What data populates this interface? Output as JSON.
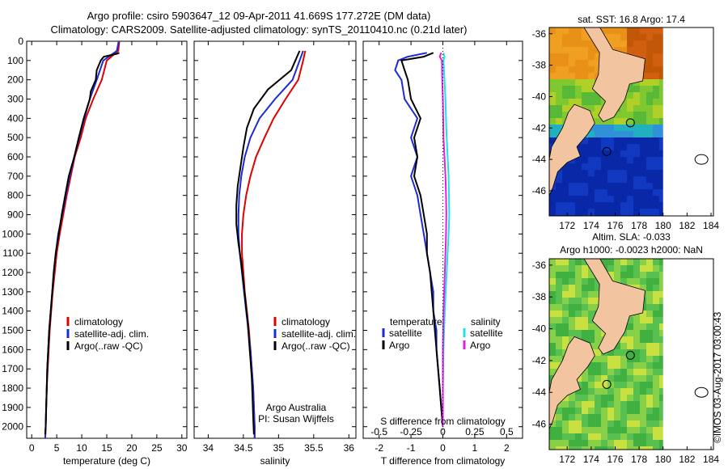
{
  "header": {
    "line1": "Argo profile: csiro 5903647_12 09-Apr-2011 41.669S 177.272E (DM data)",
    "line2": "Climatology: CARS2009. Satellite-adjusted climatology: synTS_20110410.nc (0.21d later)"
  },
  "colors": {
    "climatology": "#e00000",
    "satellite": "#1c2bd6",
    "argo": "#000000",
    "sat_salinity": "#22e0e8",
    "argo_salinity": "#e020e0",
    "land": "#f2c4a0"
  },
  "chart_data": [
    {
      "type": "line",
      "panel": "temperature",
      "xlabel": "temperature (deg C)",
      "xlim": [
        -1,
        31
      ],
      "xticks": [
        0,
        5,
        10,
        15,
        20,
        25,
        30
      ],
      "ylim": [
        2060,
        0
      ],
      "yticks": [
        0,
        100,
        200,
        300,
        400,
        500,
        600,
        700,
        800,
        900,
        1000,
        1100,
        1200,
        1300,
        1400,
        1500,
        1600,
        1700,
        1800,
        1900,
        2000
      ],
      "legend": [
        "climatology",
        "satellite-adj. clim.",
        "Argo(..raw -QC)"
      ],
      "series": [
        {
          "name": "climatology",
          "color": "#e00000",
          "points": [
            [
              17.5,
              0
            ],
            [
              17.3,
              50
            ],
            [
              15,
              100
            ],
            [
              14,
              200
            ],
            [
              12.3,
              300
            ],
            [
              10.8,
              400
            ],
            [
              9.8,
              500
            ],
            [
              8.6,
              600
            ],
            [
              7.8,
              700
            ],
            [
              7,
              800
            ],
            [
              6.3,
              900
            ],
            [
              5.6,
              1000
            ],
            [
              5,
              1100
            ],
            [
              4.6,
              1200
            ],
            [
              4.2,
              1300
            ],
            [
              3.9,
              1400
            ],
            [
              3.6,
              1500
            ],
            [
              3.4,
              1600
            ],
            [
              3.2,
              1700
            ],
            [
              3,
              1800
            ],
            [
              2.9,
              1900
            ],
            [
              2.8,
              2000
            ],
            [
              2.7,
              2060
            ]
          ]
        },
        {
          "name": "satellite-adj. clim.",
          "color": "#1c2bd6",
          "points": [
            [
              17.4,
              0
            ],
            [
              17,
              50
            ],
            [
              14.3,
              100
            ],
            [
              13,
              200
            ],
            [
              11.6,
              300
            ],
            [
              10.5,
              400
            ],
            [
              9.5,
              500
            ],
            [
              8.5,
              600
            ],
            [
              7.6,
              700
            ],
            [
              6.8,
              800
            ],
            [
              6.1,
              900
            ],
            [
              5.3,
              1000
            ],
            [
              4.8,
              1100
            ],
            [
              4.4,
              1200
            ],
            [
              4.1,
              1300
            ],
            [
              3.8,
              1400
            ],
            [
              3.5,
              1500
            ],
            [
              3.3,
              1600
            ],
            [
              3.1,
              1700
            ],
            [
              3,
              1800
            ],
            [
              2.9,
              1900
            ],
            [
              2.8,
              2000
            ],
            [
              2.7,
              2060
            ]
          ]
        },
        {
          "name": "Argo(..raw -QC)",
          "color": "#000000",
          "points": [
            [
              17.5,
              60
            ],
            [
              17,
              65
            ],
            [
              14.4,
              80
            ],
            [
              13.8,
              100
            ],
            [
              13,
              150
            ],
            [
              12.8,
              200
            ],
            [
              11.8,
              260
            ],
            [
              11.6,
              300
            ],
            [
              10.4,
              400
            ],
            [
              9.4,
              500
            ],
            [
              8.5,
              600
            ],
            [
              7.4,
              700
            ],
            [
              6.7,
              800
            ],
            [
              6,
              900
            ],
            [
              5.4,
              1000
            ],
            [
              4.8,
              1100
            ],
            [
              4.4,
              1200
            ],
            [
              4.1,
              1300
            ],
            [
              3.8,
              1400
            ],
            [
              3.5,
              1500
            ],
            [
              3.3,
              1600
            ],
            [
              3.1,
              1700
            ],
            [
              3,
              1800
            ],
            [
              2.9,
              1900
            ],
            [
              2.8,
              2000
            ],
            [
              2.7,
              2040
            ]
          ]
        }
      ]
    },
    {
      "type": "line",
      "panel": "salinity",
      "xlabel": "salinity",
      "xlim": [
        33.8,
        36.1
      ],
      "xticks": [
        34,
        34.5,
        35,
        35.5,
        36
      ],
      "xtick_labels": [
        "34",
        "34.5",
        "35",
        "35.5",
        "36"
      ],
      "ylim": [
        2060,
        0
      ],
      "legend": [
        "climatology",
        "satellite-adj. clim.",
        "Argo(..raw -QC)"
      ],
      "annotation": [
        "Argo Australia",
        "PI: Susan Wijffels"
      ],
      "series": [
        {
          "name": "climatology",
          "color": "#e00000",
          "points": [
            [
              35.38,
              50
            ],
            [
              35.35,
              100
            ],
            [
              35.28,
              200
            ],
            [
              35.1,
              300
            ],
            [
              34.93,
              400
            ],
            [
              34.8,
              500
            ],
            [
              34.68,
              600
            ],
            [
              34.6,
              700
            ],
            [
              34.54,
              800
            ],
            [
              34.5,
              900
            ],
            [
              34.48,
              1000
            ],
            [
              34.48,
              1100
            ],
            [
              34.5,
              1200
            ],
            [
              34.52,
              1300
            ],
            [
              34.55,
              1400
            ],
            [
              34.58,
              1500
            ],
            [
              34.6,
              1600
            ],
            [
              34.62,
              1700
            ],
            [
              34.64,
              1800
            ],
            [
              34.65,
              1900
            ],
            [
              34.66,
              2000
            ],
            [
              34.66,
              2060
            ]
          ]
        },
        {
          "name": "satellite-adj. clim.",
          "color": "#1c2bd6",
          "points": [
            [
              35.35,
              50
            ],
            [
              35.3,
              100
            ],
            [
              35.2,
              200
            ],
            [
              34.95,
              300
            ],
            [
              34.73,
              400
            ],
            [
              34.6,
              500
            ],
            [
              34.52,
              600
            ],
            [
              34.47,
              700
            ],
            [
              34.44,
              800
            ],
            [
              34.43,
              900
            ],
            [
              34.43,
              1000
            ],
            [
              34.45,
              1100
            ],
            [
              34.48,
              1200
            ],
            [
              34.51,
              1300
            ],
            [
              34.54,
              1400
            ],
            [
              34.57,
              1500
            ],
            [
              34.6,
              1600
            ],
            [
              34.62,
              1700
            ],
            [
              34.64,
              1800
            ],
            [
              34.65,
              1900
            ],
            [
              34.66,
              2000
            ],
            [
              34.66,
              2060
            ]
          ]
        },
        {
          "name": "Argo(..raw -QC)",
          "color": "#000000",
          "points": [
            [
              35.3,
              50
            ],
            [
              35.24,
              100
            ],
            [
              35.18,
              150
            ],
            [
              34.85,
              250
            ],
            [
              34.65,
              350
            ],
            [
              34.55,
              450
            ],
            [
              34.5,
              550
            ],
            [
              34.46,
              650
            ],
            [
              34.42,
              750
            ],
            [
              34.4,
              850
            ],
            [
              34.4,
              950
            ],
            [
              34.43,
              1050
            ],
            [
              34.47,
              1150
            ],
            [
              34.5,
              1250
            ],
            [
              34.53,
              1350
            ],
            [
              34.56,
              1450
            ],
            [
              34.58,
              1550
            ],
            [
              34.6,
              1650
            ],
            [
              34.62,
              1750
            ],
            [
              34.63,
              1850
            ],
            [
              34.64,
              1950
            ],
            [
              34.65,
              2040
            ]
          ]
        }
      ]
    },
    {
      "type": "line",
      "panel": "difference",
      "xlabel": "T difference from climatology",
      "xlim": [
        -2.5,
        2.5
      ],
      "xticks": [
        -2,
        -1,
        0,
        1,
        2
      ],
      "top_label": "S difference from climatology",
      "top_ticks": [
        -0.5,
        -0.25,
        0,
        0.25,
        0.5
      ],
      "top_tick_labels": [
        "-0.5",
        "-0.25",
        "0",
        "0.25",
        "0.5"
      ],
      "ylim": [
        2060,
        0
      ],
      "legend_titles": [
        "temperature",
        "salinity"
      ],
      "legend": [
        "satellite",
        "Argo",
        "satellite",
        "Argo"
      ],
      "series": [
        {
          "name": "satellite",
          "color": "#1c2bd6",
          "points": [
            [
              -0.5,
              60
            ],
            [
              -1.1,
              80
            ],
            [
              -1.4,
              100
            ],
            [
              -1.5,
              150
            ],
            [
              -1.3,
              200
            ],
            [
              -1.2,
              300
            ],
            [
              -0.8,
              400
            ],
            [
              -1,
              500
            ],
            [
              -0.8,
              600
            ],
            [
              -1,
              700
            ],
            [
              -0.8,
              800
            ],
            [
              -0.7,
              900
            ],
            [
              -0.6,
              1000
            ],
            [
              -0.5,
              1100
            ],
            [
              -0.4,
              1200
            ],
            [
              -0.3,
              1300
            ],
            [
              -0.3,
              1400
            ],
            [
              -0.2,
              1500
            ],
            [
              -0.2,
              1600
            ],
            [
              -0.15,
              1700
            ],
            [
              -0.1,
              1800
            ],
            [
              -0.05,
              1900
            ],
            [
              0,
              2000
            ]
          ]
        },
        {
          "name": "Argo",
          "color": "#000000",
          "points": [
            [
              -0.3,
              60
            ],
            [
              -0.6,
              80
            ],
            [
              -1.3,
              100
            ],
            [
              -1.2,
              150
            ],
            [
              -1.1,
              200
            ],
            [
              -1,
              300
            ],
            [
              -0.7,
              400
            ],
            [
              -0.9,
              500
            ],
            [
              -0.8,
              600
            ],
            [
              -0.9,
              700
            ],
            [
              -0.7,
              800
            ],
            [
              -0.6,
              900
            ],
            [
              -0.5,
              1000
            ],
            [
              -0.5,
              1100
            ],
            [
              -0.4,
              1200
            ],
            [
              -0.35,
              1300
            ],
            [
              -0.3,
              1400
            ],
            [
              -0.25,
              1500
            ],
            [
              -0.2,
              1600
            ],
            [
              -0.15,
              1700
            ],
            [
              -0.1,
              1800
            ],
            [
              -0.05,
              1900
            ],
            [
              0,
              2000
            ]
          ]
        },
        {
          "name": "satellite",
          "color": "#22e0e8",
          "points": [
            [
              0.02,
              60
            ],
            [
              0.05,
              80
            ],
            [
              0.02,
              100
            ],
            [
              0.05,
              200
            ],
            [
              0.08,
              300
            ],
            [
              0.1,
              400
            ],
            [
              0.12,
              500
            ],
            [
              0.15,
              600
            ],
            [
              0.18,
              700
            ],
            [
              0.19,
              800
            ],
            [
              0.2,
              900
            ],
            [
              0.18,
              1000
            ],
            [
              0.15,
              1100
            ],
            [
              0.12,
              1200
            ],
            [
              0.09,
              1300
            ],
            [
              0.06,
              1400
            ],
            [
              0.04,
              1500
            ],
            [
              0.02,
              1600
            ],
            [
              0.01,
              1700
            ],
            [
              0,
              1800
            ],
            [
              0,
              1900
            ],
            [
              0,
              2000
            ]
          ]
        },
        {
          "name": "Argo",
          "color": "#e020e0",
          "points": [
            [
              -0.05,
              60
            ],
            [
              -0.1,
              80
            ],
            [
              -0.03,
              100
            ],
            [
              -0.02,
              200
            ],
            [
              0,
              300
            ],
            [
              0.01,
              400
            ],
            [
              0.02,
              500
            ],
            [
              0.05,
              600
            ],
            [
              0.08,
              700
            ],
            [
              0.1,
              800
            ],
            [
              0.11,
              900
            ],
            [
              0.1,
              1000
            ],
            [
              0.08,
              1100
            ],
            [
              0.06,
              1200
            ],
            [
              0.04,
              1300
            ],
            [
              0.02,
              1400
            ],
            [
              0.01,
              1500
            ],
            [
              0,
              1600
            ],
            [
              0,
              1700
            ],
            [
              0,
              1800
            ],
            [
              0,
              1900
            ],
            [
              0,
              2000
            ]
          ]
        }
      ]
    },
    {
      "type": "heatmap",
      "panel": "sst_map",
      "title": "sat. SST: 16.8 Argo: 17.4",
      "xlim": [
        170.5,
        184.2
      ],
      "ylim": [
        -47.6,
        -35.6
      ],
      "xticks": [
        172,
        174,
        176,
        178,
        180,
        182,
        184
      ],
      "yticks": [
        -36,
        -38,
        -40,
        -42,
        -44,
        -46
      ]
    },
    {
      "type": "heatmap",
      "panel": "sla_map",
      "title": "Altim. SLA: -0.033",
      "subtitle": "Argo h1000: -0.0023 h2000: NaN",
      "xlim": [
        170.5,
        184.2
      ],
      "ylim": [
        -47.6,
        -35.6
      ],
      "xticks": [
        172,
        174,
        176,
        178,
        180,
        182,
        184
      ],
      "yticks": [
        -36,
        -38,
        -40,
        -42,
        -44,
        -46
      ]
    }
  ],
  "watermark": "©IMOS 03-Aug-2017 03:00:43"
}
